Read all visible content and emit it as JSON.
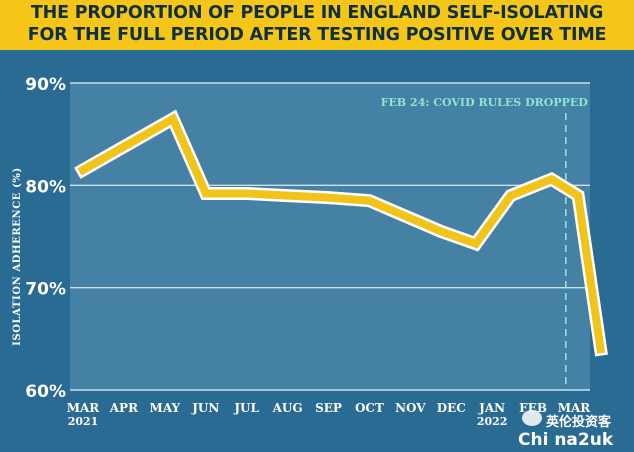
{
  "chart_data": {
    "type": "line",
    "title_lines": [
      "THE PROPORTION OF PEOPLE IN ENGLAND SELF-ISOLATING",
      "FOR THE FULL PERIOD AFTER TESTING POSITIVE OVER TIME"
    ],
    "xlabel": "",
    "ylabel": "ISOLATION ADHERENCE (%)",
    "ylim": [
      60,
      90
    ],
    "yticks": [
      {
        "value": 90,
        "label": "90%"
      },
      {
        "value": 80,
        "label": "80%"
      },
      {
        "value": 70,
        "label": "70%"
      },
      {
        "value": 60,
        "label": "60%"
      }
    ],
    "categories": [
      {
        "top": "MAR",
        "bottom": "2021"
      },
      {
        "top": "APR",
        "bottom": ""
      },
      {
        "top": "MAY",
        "bottom": ""
      },
      {
        "top": "JUN",
        "bottom": ""
      },
      {
        "top": "JUL",
        "bottom": ""
      },
      {
        "top": "AUG",
        "bottom": ""
      },
      {
        "top": "SEP",
        "bottom": ""
      },
      {
        "top": "OCT",
        "bottom": ""
      },
      {
        "top": "NOV",
        "bottom": ""
      },
      {
        "top": "DEC",
        "bottom": ""
      },
      {
        "top": "JAN",
        "bottom": "2022"
      },
      {
        "top": "FEB",
        "bottom": ""
      },
      {
        "top": "MAR",
        "bottom": ""
      }
    ],
    "x": [
      0,
      2.2,
      3,
      4,
      5,
      6,
      7,
      8.75,
      9.6,
      10.45,
      11.45,
      12.1,
      12.65
    ],
    "values": [
      81.5,
      86.5,
      79.2,
      79.2,
      79.0,
      78.8,
      78.5,
      75.5,
      74.3,
      79.0,
      80.6,
      79.0,
      64.0
    ],
    "annotation": {
      "label": "FEB 24: COVID RULES DROPPED",
      "x": 11.8
    },
    "grid": true,
    "colors": {
      "line": "#f0c419",
      "line_outline": "#ffffff",
      "area": "#5b93b5",
      "background": "#2a6b93",
      "annotation": "#8ee6cf",
      "title_band": "#f5c518",
      "title_text": "#11303f"
    }
  },
  "watermark": {
    "line1": "英伦投资客",
    "line2": "Chi na2uk"
  }
}
